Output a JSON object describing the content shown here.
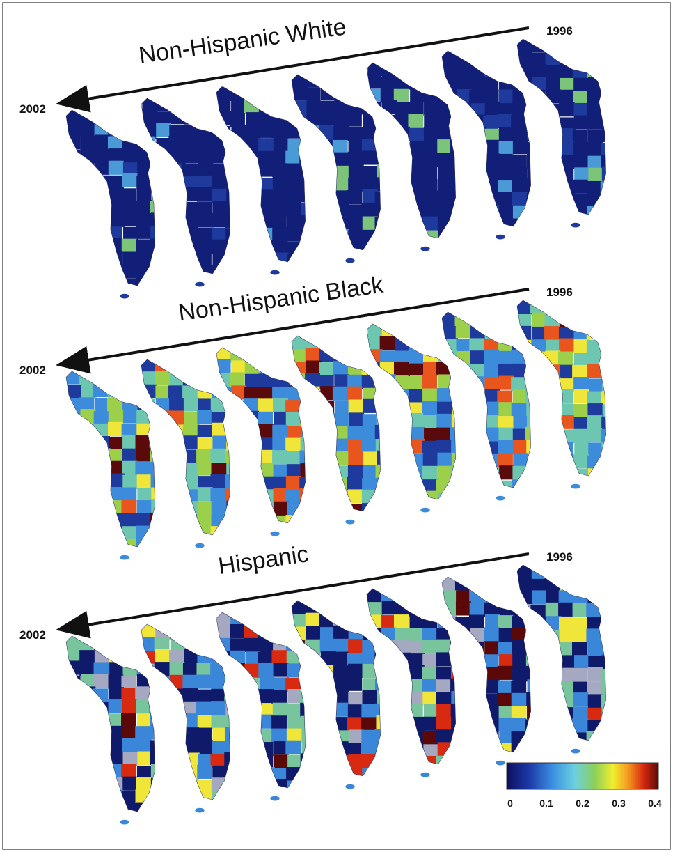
{
  "panels": [
    {
      "title": "Non-Hispanic White",
      "start_year": "1996",
      "end_year": "2002"
    },
    {
      "title": "Non-Hispanic Black",
      "start_year": "1996",
      "end_year": "2002"
    },
    {
      "title": "Hispanic",
      "start_year": "1996",
      "end_year": "2002"
    }
  ],
  "colorbar": {
    "ticks": [
      "0",
      "0.1",
      "0.2",
      "0.3",
      "0.4"
    ]
  }
}
